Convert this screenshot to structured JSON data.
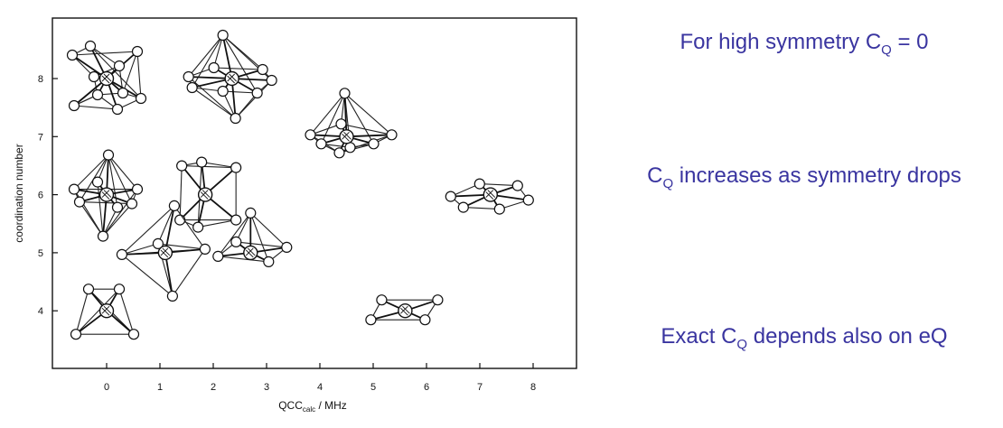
{
  "figure": {
    "xlabel_main": "QCC",
    "xlabel_sub": "calc",
    "xlabel_unit": " / MHz",
    "ylabel": "coordination number",
    "xticks": [
      "0",
      "1",
      "2",
      "3",
      "4",
      "5",
      "6",
      "7",
      "8"
    ],
    "yticks": [
      "4",
      "5",
      "6",
      "7",
      "8"
    ],
    "structures": [
      {
        "name": "cube",
        "x": 0.0,
        "cn": 8
      },
      {
        "name": "square-antiprism",
        "x": 2.35,
        "cn": 8
      },
      {
        "name": "pentagonal-bipyramid",
        "x": 4.5,
        "cn": 7
      },
      {
        "name": "octahedron",
        "x": 0.0,
        "cn": 6
      },
      {
        "name": "trigonal-prism",
        "x": 1.85,
        "cn": 6
      },
      {
        "name": "hexagonal-planar",
        "x": 7.2,
        "cn": 6
      },
      {
        "name": "trigonal-bipyramid",
        "x": 1.1,
        "cn": 5
      },
      {
        "name": "square-pyramid",
        "x": 2.7,
        "cn": 5
      },
      {
        "name": "tetrahedron",
        "x": 0.0,
        "cn": 4
      },
      {
        "name": "square-planar",
        "x": 5.6,
        "cn": 4
      }
    ]
  },
  "notes": [
    {
      "pre": "For high symmetry C",
      "sub": "Q",
      "post": " = 0"
    },
    {
      "pre": "C",
      "sub": "Q",
      "post": " increases as symmetry drops"
    },
    {
      "pre": "Exact C",
      "sub": "Q",
      "post": " depends also on eQ"
    }
  ]
}
